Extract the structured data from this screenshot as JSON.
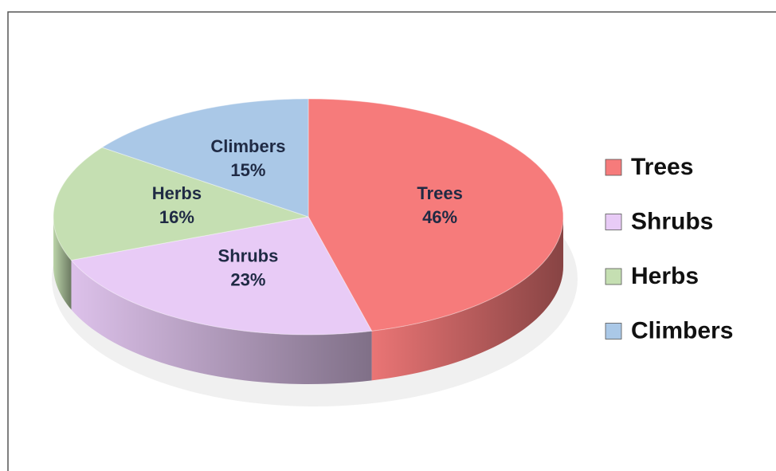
{
  "chart_data": {
    "type": "pie",
    "categories": [
      "Trees",
      "Shrubs",
      "Herbs",
      "Climbers"
    ],
    "values": [
      46,
      23,
      16,
      15
    ],
    "value_labels": [
      "46%",
      "23%",
      "16%",
      "15%"
    ],
    "colors": [
      "#f67b7b",
      "#e8cbf6",
      "#c5dfb2",
      "#aac8e7"
    ],
    "legend": "right"
  }
}
